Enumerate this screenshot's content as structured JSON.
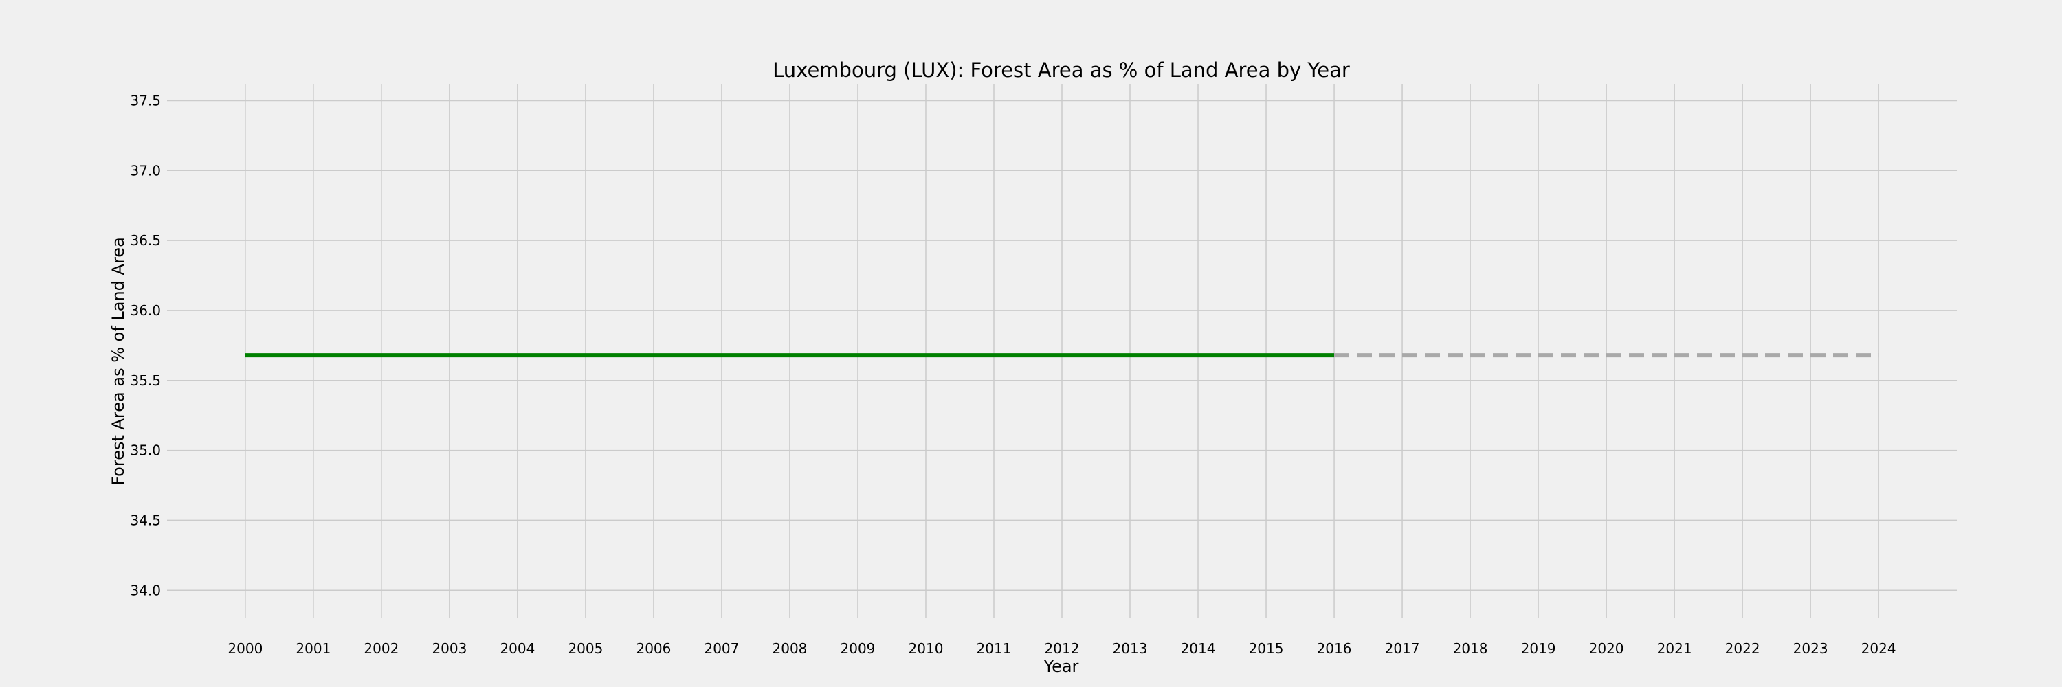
{
  "chart_data": {
    "type": "line",
    "title": "Luxembourg (LUX): Forest Area as % of Land Area by Year",
    "xlabel": "Year",
    "ylabel": "Forest Area as % of Land Area",
    "xlim": [
      1998.85,
      2025.15
    ],
    "ylim": [
      33.8,
      37.62
    ],
    "x_ticks": [
      "2000",
      "2001",
      "2002",
      "2003",
      "2004",
      "2005",
      "2006",
      "2007",
      "2008",
      "2009",
      "2010",
      "2011",
      "2012",
      "2013",
      "2014",
      "2015",
      "2016",
      "2017",
      "2018",
      "2019",
      "2020",
      "2021",
      "2022",
      "2023",
      "2024"
    ],
    "y_ticks": [
      "34.0",
      "34.5",
      "35.0",
      "35.5",
      "36.0",
      "36.5",
      "37.0",
      "37.5"
    ],
    "grid": true,
    "series": [
      {
        "style": "solid",
        "color": "#008000",
        "x": [
          2000,
          2001,
          2002,
          2003,
          2004,
          2005,
          2006,
          2007,
          2008,
          2009,
          2010,
          2011,
          2012,
          2013,
          2014,
          2015,
          2016
        ],
        "y": [
          35.68,
          35.68,
          35.68,
          35.68,
          35.68,
          35.68,
          35.68,
          35.68,
          35.68,
          35.68,
          35.68,
          35.68,
          35.68,
          35.68,
          35.68,
          35.68,
          35.68
        ]
      },
      {
        "style": "dashed",
        "color": "#a9a9a9",
        "x": [
          2016,
          2017,
          2018,
          2019,
          2020,
          2021,
          2022,
          2023,
          2024
        ],
        "y": [
          35.68,
          35.68,
          35.68,
          35.68,
          35.68,
          35.68,
          35.68,
          35.68,
          35.68
        ]
      }
    ]
  }
}
